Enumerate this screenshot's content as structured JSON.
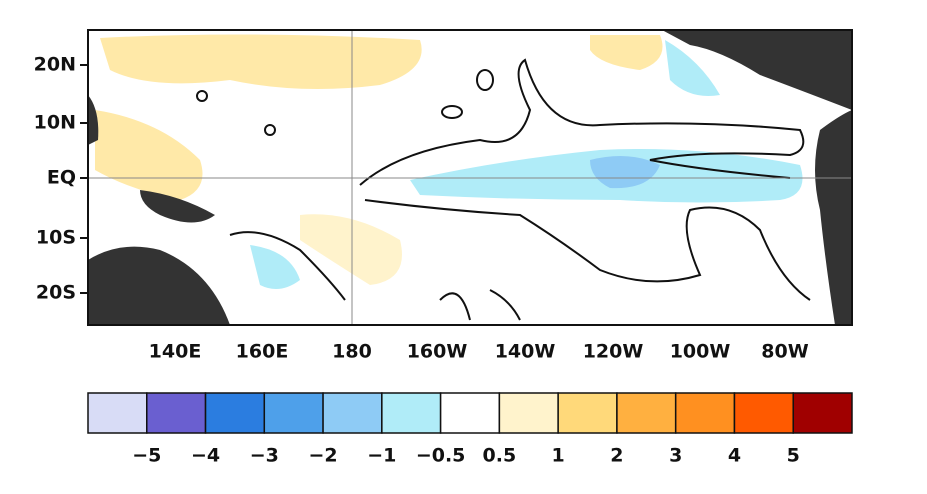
{
  "map": {
    "lat_labels": [
      "20N",
      "10N",
      "EQ",
      "10S",
      "20S"
    ],
    "lon_labels": [
      "140E",
      "160E",
      "180",
      "160W",
      "140W",
      "120W",
      "100W",
      "80W"
    ]
  },
  "colorbar": {
    "colors": [
      "#d8dcf6",
      "#6a5fd0",
      "#2b7de0",
      "#4ea0ea",
      "#8ecbf5",
      "#b0ecf8",
      "#ffffff",
      "#fff3cc",
      "#ffd97a",
      "#ffb040",
      "#ff9020",
      "#ff5a00",
      "#a00000"
    ],
    "labels": [
      "−5",
      "−4",
      "−3",
      "−2",
      "−1",
      "−0.5",
      "0.5",
      "1",
      "2",
      "3",
      "4",
      "5"
    ]
  }
}
